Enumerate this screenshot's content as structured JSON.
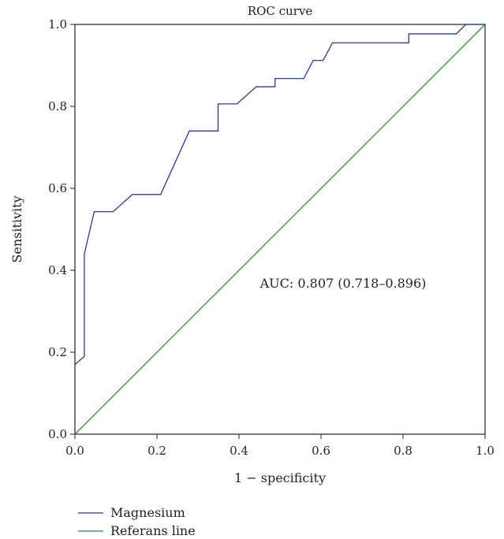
{
  "chart_data": {
    "type": "line",
    "title": "ROC curve",
    "xlabel": "1 − specificity",
    "ylabel": "Sensitivity",
    "xlim": [
      0,
      1
    ],
    "ylim": [
      0,
      1
    ],
    "x_ticks": [
      0.0,
      0.2,
      0.4,
      0.6,
      0.8,
      1.0
    ],
    "y_ticks": [
      0.0,
      0.2,
      0.4,
      0.6,
      0.8,
      1.0
    ],
    "x_tick_labels": [
      "0.0",
      "0.2",
      "0.4",
      "0.6",
      "0.8",
      "1.0"
    ],
    "y_tick_labels": [
      "0.0",
      "0.2",
      "0.4",
      "0.6",
      "0.8",
      "1.0"
    ],
    "grid": false,
    "legend_position": "bottom-left",
    "annotation": "AUC: 0.807 (0.718–0.896)",
    "series": [
      {
        "name": "Magnesium",
        "color": "#2b3a8f",
        "x": [
          0.0,
          0.023,
          0.023,
          0.047,
          0.093,
          0.14,
          0.209,
          0.279,
          0.349,
          0.349,
          0.395,
          0.442,
          0.488,
          0.488,
          0.558,
          0.581,
          0.605,
          0.628,
          0.814,
          0.814,
          0.93,
          0.953,
          1.0
        ],
        "y": [
          0.17,
          0.19,
          0.44,
          0.543,
          0.543,
          0.585,
          0.585,
          0.74,
          0.74,
          0.806,
          0.806,
          0.848,
          0.848,
          0.868,
          0.868,
          0.912,
          0.912,
          0.955,
          0.955,
          0.977,
          0.977,
          1.0,
          1.0
        ]
      },
      {
        "name": "Referans line",
        "color": "#2e8b3a",
        "x": [
          0,
          1
        ],
        "y": [
          0,
          1
        ]
      }
    ]
  }
}
